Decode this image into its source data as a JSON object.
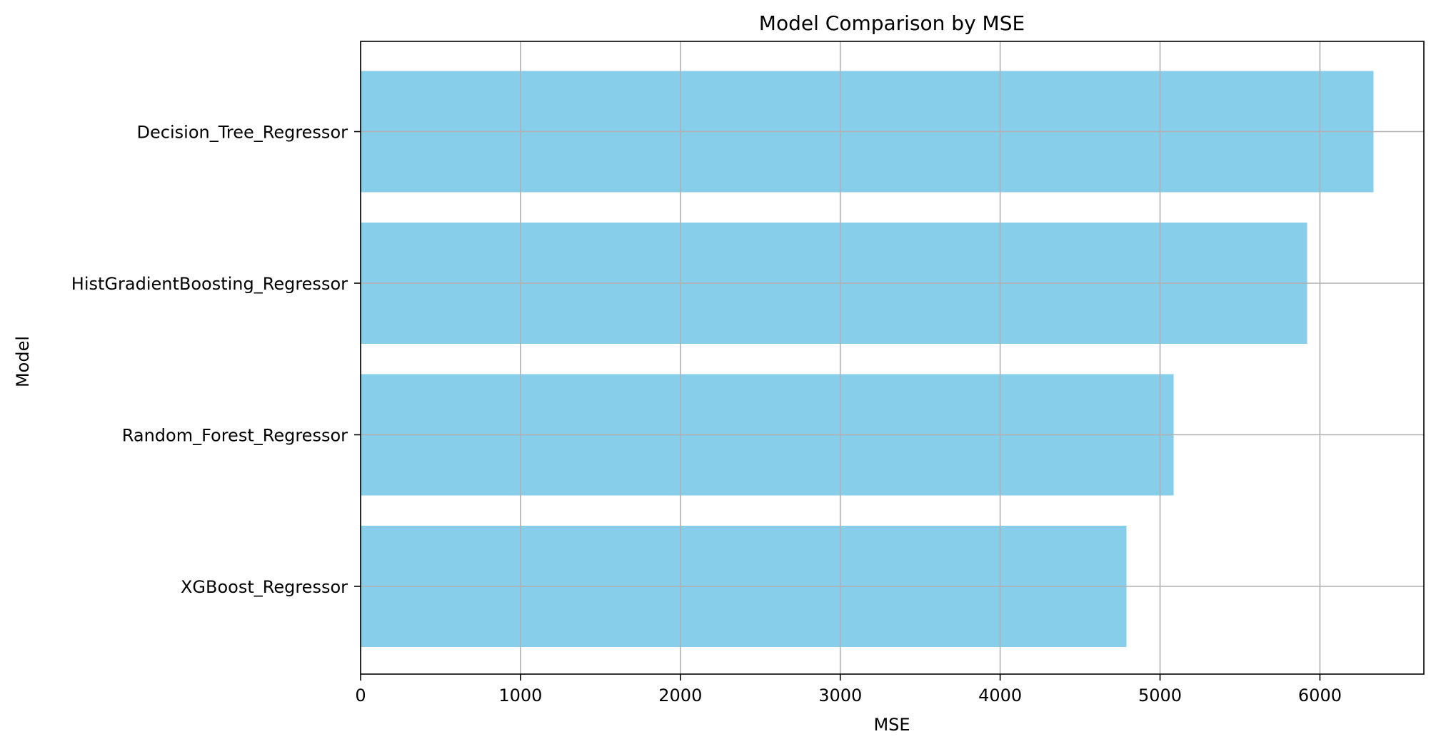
{
  "chart_data": {
    "type": "bar",
    "orientation": "horizontal",
    "title": "Model Comparison by MSE",
    "xlabel": "MSE",
    "ylabel": "Model",
    "categories": [
      "Decision_Tree_Regressor",
      "HistGradientBoosting_Regressor",
      "Random_Forest_Regressor",
      "XGBoost_Regressor"
    ],
    "values": [
      6335,
      5920,
      5085,
      4790
    ],
    "xlim": [
      0,
      6650
    ],
    "xticks": [
      0,
      1000,
      2000,
      3000,
      4000,
      5000,
      6000
    ],
    "xtick_labels": [
      "0",
      "1000",
      "2000",
      "3000",
      "4000",
      "5000",
      "6000"
    ],
    "grid": true,
    "colors": {
      "bar": "#87ceeb",
      "grid": "#b0b0b0",
      "axis": "#000000"
    }
  }
}
